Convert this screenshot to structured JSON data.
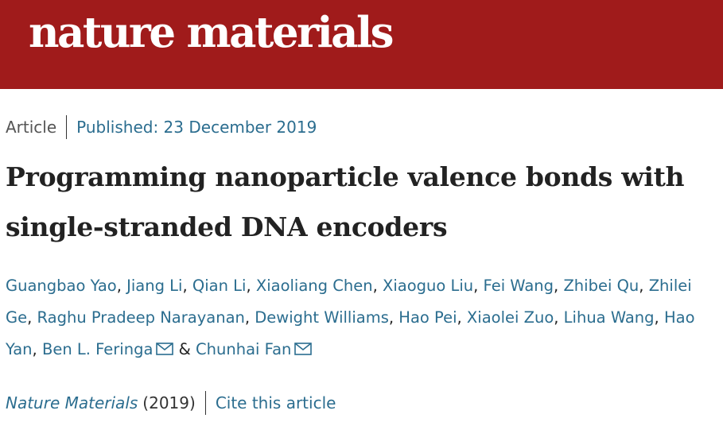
{
  "header": {
    "logo_text": "nature materials"
  },
  "article_meta": {
    "type": "Article",
    "published": "Published: 23 December 2019"
  },
  "article": {
    "title": "Programming nanoparticle valence bonds with single-stranded DNA encoders"
  },
  "authors": [
    {
      "name": "Guangbao Yao",
      "sep": ", "
    },
    {
      "name": "Jiang Li",
      "sep": ", "
    },
    {
      "name": "Qian Li",
      "sep": ", "
    },
    {
      "name": "Xiaoliang Chen",
      "sep": ", "
    },
    {
      "name": "Xiaoguo Liu",
      "sep": ", "
    },
    {
      "name": "Fei Wang",
      "sep": ", "
    },
    {
      "name": "Zhibei Qu",
      "sep": ", "
    },
    {
      "name": "Zhilei Ge",
      "sep": ", "
    },
    {
      "name": "Raghu Pradeep Narayanan",
      "sep": ", "
    },
    {
      "name": "Dewight Williams",
      "sep": ", "
    },
    {
      "name": "Hao Pei",
      "sep": ", "
    },
    {
      "name": "Xiaolei Zuo",
      "sep": ", "
    },
    {
      "name": "Lihua Wang",
      "sep": ", "
    },
    {
      "name": "Hao Yan",
      "sep": ", "
    },
    {
      "name": "Ben L. Feringa",
      "sep": " & ",
      "email_icon": "envelope-icon"
    },
    {
      "name": "Chunhai Fan",
      "sep": "",
      "email_icon": "envelope-icon"
    }
  ],
  "citation": {
    "journal": "Nature Materials",
    "year": "(2019)",
    "cite_label": "Cite this article"
  },
  "colors": {
    "brand": "#a01b1b",
    "link": "#2b6d8f",
    "text": "#222222"
  }
}
